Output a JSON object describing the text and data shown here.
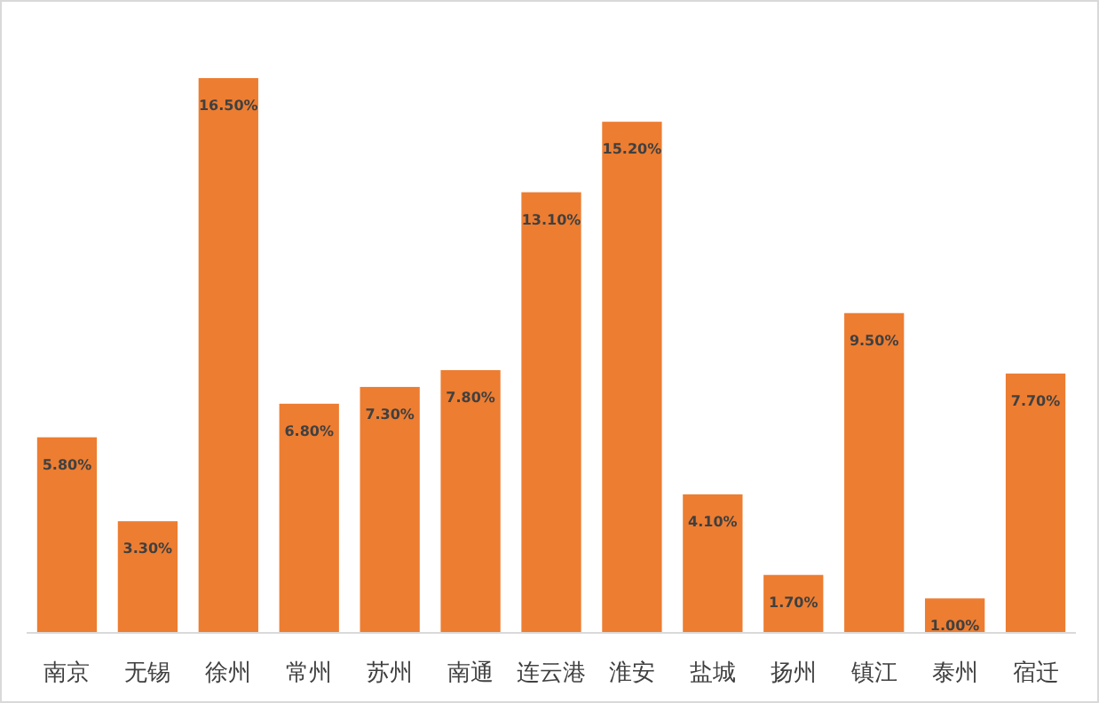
{
  "chart_data": {
    "type": "bar",
    "categories": [
      "南京",
      "无锡",
      "徐州",
      "常州",
      "苏州",
      "南通",
      "连云港",
      "淮安",
      "盐城",
      "扬州",
      "镇江",
      "泰州",
      "宿迁"
    ],
    "values": [
      5.8,
      3.3,
      16.5,
      6.8,
      7.3,
      7.8,
      13.1,
      15.2,
      4.1,
      1.7,
      9.5,
      1.0,
      7.7
    ],
    "value_labels": [
      "5.80%",
      "3.30%",
      "16.50%",
      "6.80%",
      "7.30%",
      "7.80%",
      "13.10%",
      "15.20%",
      "4.10%",
      "1.70%",
      "9.50%",
      "1.00%",
      "7.70%"
    ],
    "color": "#ed7d31",
    "ylim": [
      0,
      16.5
    ],
    "tick_labels": "x"
  }
}
